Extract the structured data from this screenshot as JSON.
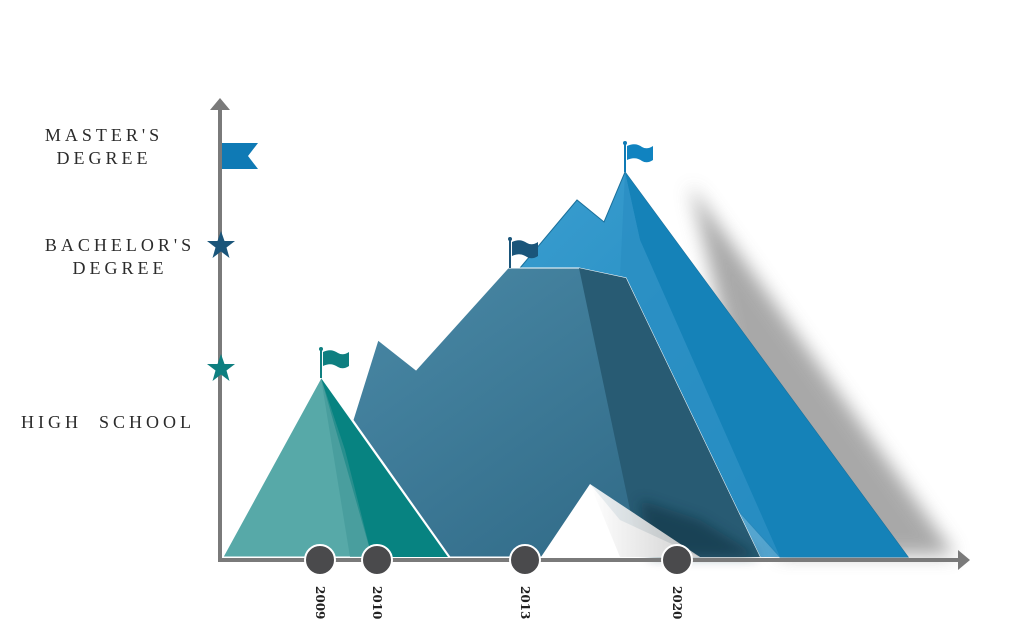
{
  "levels": [
    {
      "id": "high-school",
      "line1": "HIGH  SCHOOL",
      "line2": "",
      "marker": "star-icon",
      "color": "#0e7f80"
    },
    {
      "id": "bachelors",
      "line1": "BACHELOR'S",
      "line2": "DEGREE",
      "marker": "star-icon",
      "color": "#1a557a"
    },
    {
      "id": "masters",
      "line1": "MASTER'S",
      "line2": "DEGREE",
      "marker": "flag-icon",
      "color": "#0f7ab5"
    }
  ],
  "years": [
    "2009",
    "2010",
    "2013",
    "2020"
  ],
  "colors": {
    "axis": "#7a7a7a",
    "teal_light": "#57a9a8",
    "teal_dark": "#078381",
    "slate": "#36718d",
    "slate_dark": "#295a70",
    "blue": "#1783b9",
    "blue_light": "#3b9ccc",
    "marker": "#4a4a4c"
  }
}
